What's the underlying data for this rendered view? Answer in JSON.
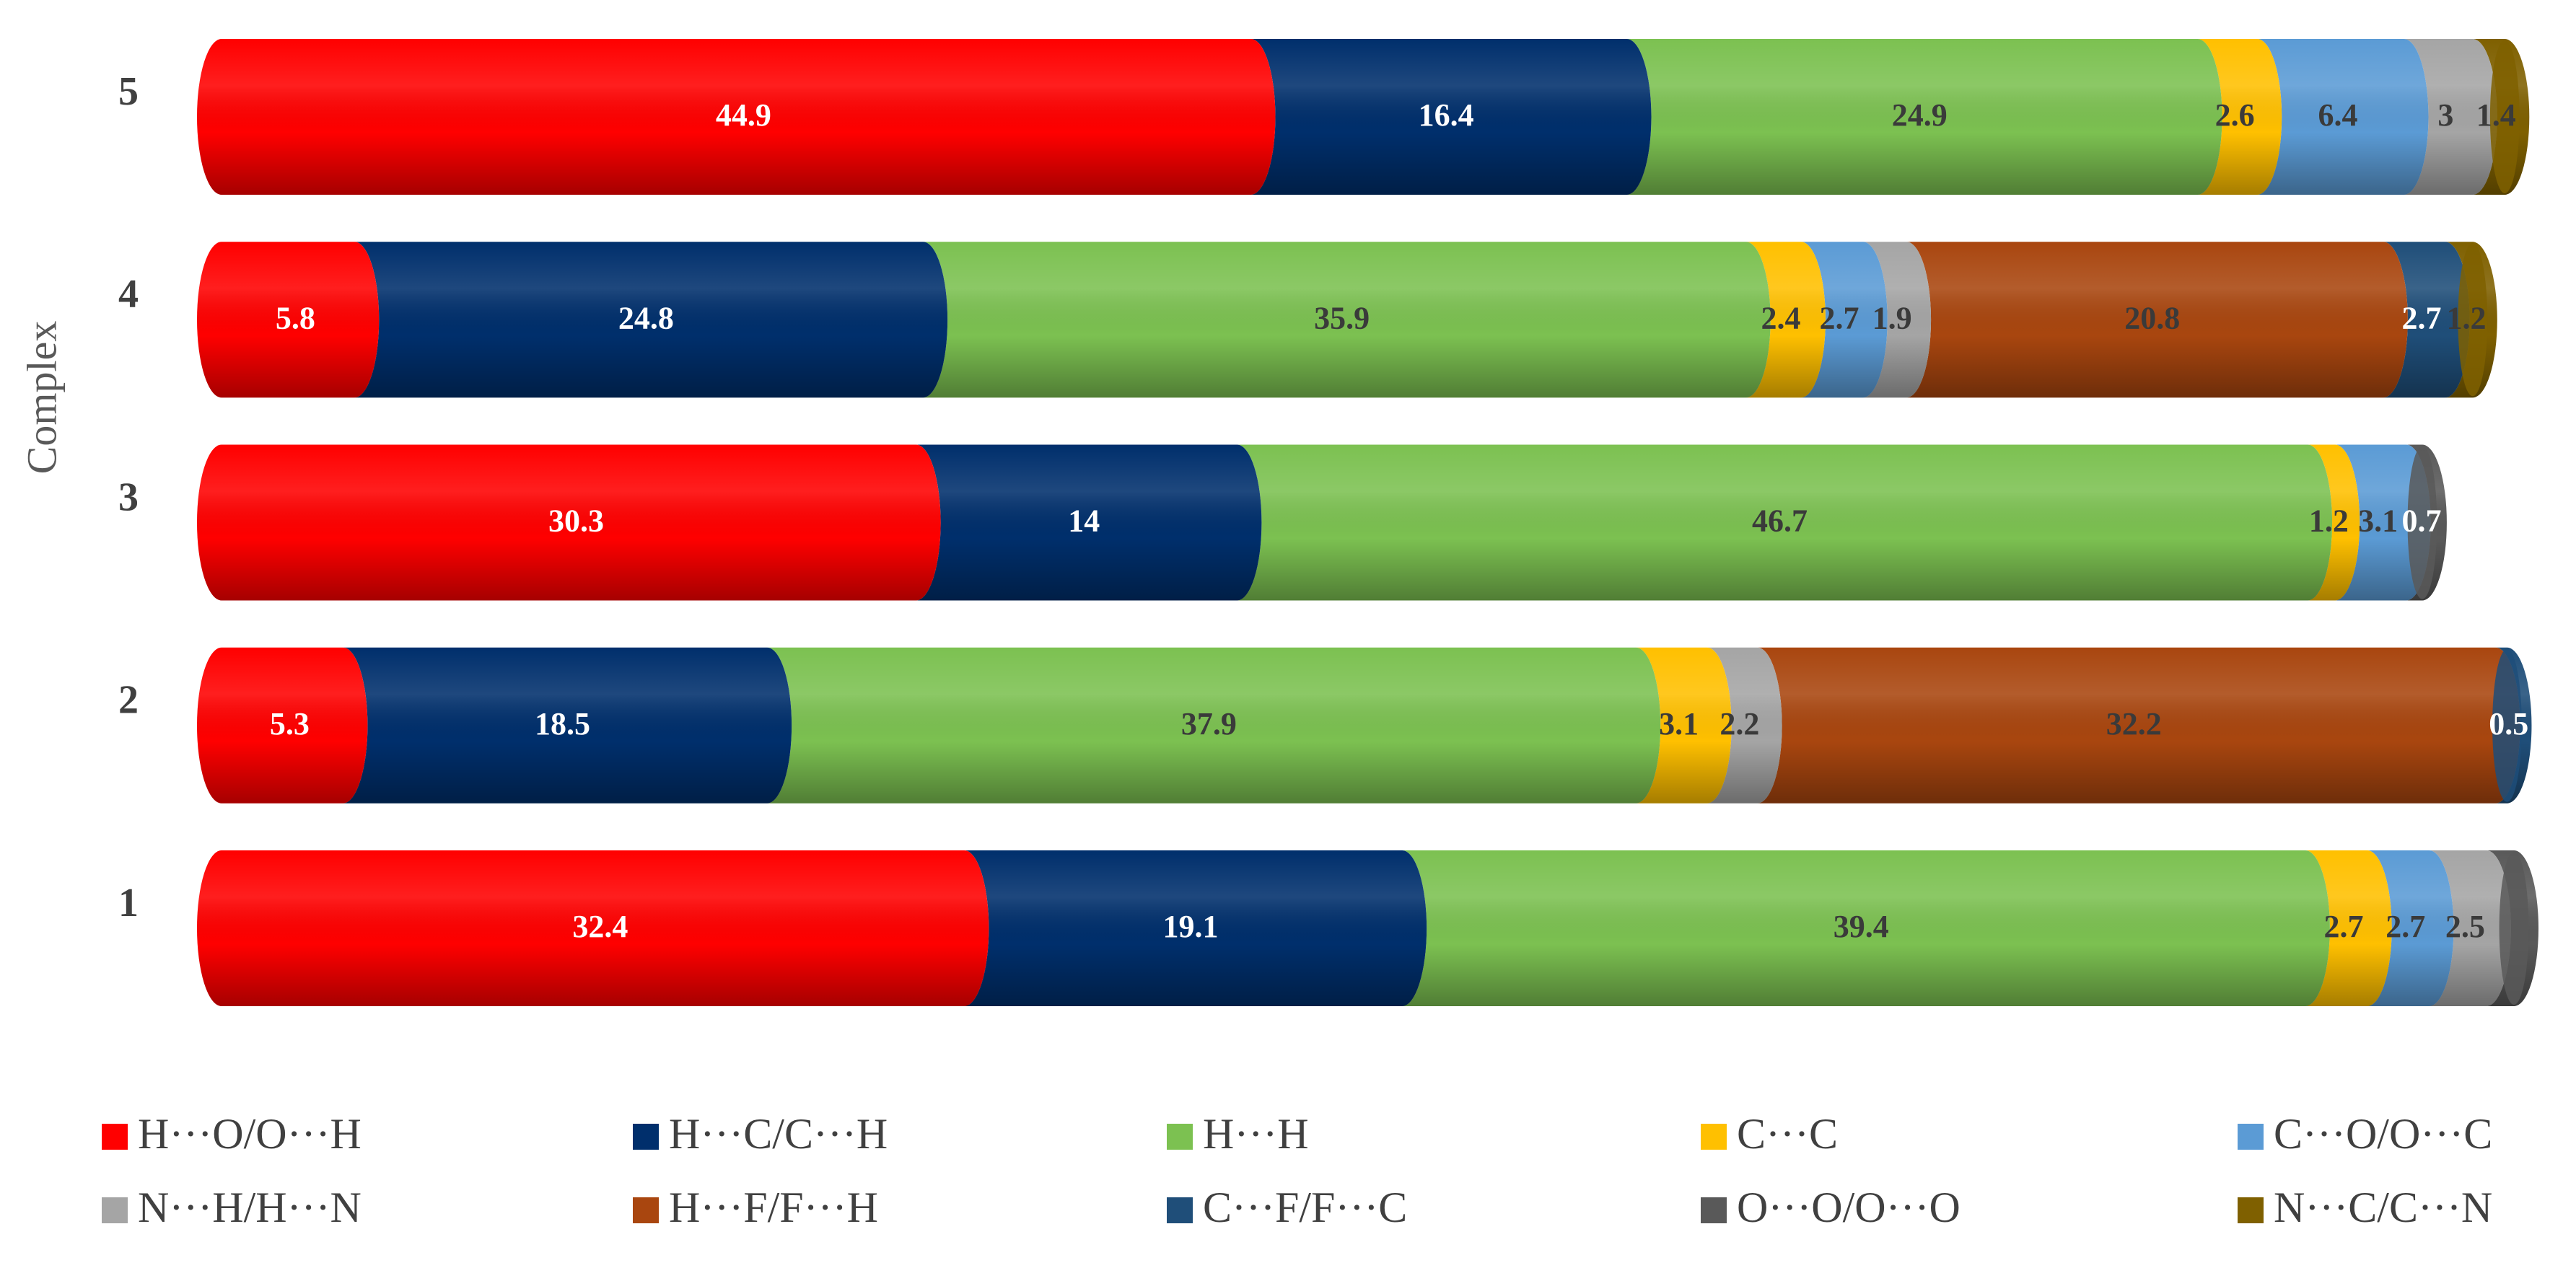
{
  "chart_data": {
    "type": "stacked-cylinder-bar",
    "orientation": "horizontal",
    "ylabel": "Complex",
    "categories": [
      "1",
      "2",
      "3",
      "4",
      "5"
    ],
    "xlim": [
      0,
      100
    ],
    "series": [
      {
        "name": "H···O/O···H",
        "color": "#ff0000",
        "values": [
          32.4,
          5.3,
          30.3,
          5.8,
          44.9
        ]
      },
      {
        "name": "H···C/C···H",
        "color": "#002f6c",
        "values": [
          19.1,
          18.5,
          14.0,
          24.8,
          16.4
        ]
      },
      {
        "name": "H···H",
        "color": "#7cc151",
        "values": [
          39.4,
          37.9,
          46.7,
          35.9,
          24.9
        ]
      },
      {
        "name": "C···C",
        "color": "#ffc000",
        "values": [
          2.7,
          3.1,
          1.2,
          2.4,
          2.6
        ]
      },
      {
        "name": "C···O/O···C",
        "color": "#5b9bd5",
        "values": [
          2.7,
          null,
          3.1,
          2.7,
          6.4
        ]
      },
      {
        "name": "N···H/H···N",
        "color": "#a5a5a5",
        "values": [
          2.5,
          2.2,
          null,
          1.9,
          3.0
        ]
      },
      {
        "name": "H···F/F···H",
        "color": "#a9460f",
        "values": [
          null,
          32.2,
          null,
          20.8,
          null
        ]
      },
      {
        "name": "C···F/F···C",
        "color": "#1f4e79",
        "values": [
          null,
          0.5,
          null,
          2.7,
          null
        ]
      },
      {
        "name": "O···O/O···O",
        "color": "#595959",
        "values": [
          1.2,
          null,
          0.7,
          null,
          null
        ],
        "value_labels": [
          null,
          null,
          "0.7",
          null,
          null
        ]
      },
      {
        "name": "N···C/C···N",
        "color": "#7f6000",
        "values": [
          null,
          null,
          null,
          1.2,
          1.4
        ]
      }
    ],
    "legend": "bottom"
  }
}
